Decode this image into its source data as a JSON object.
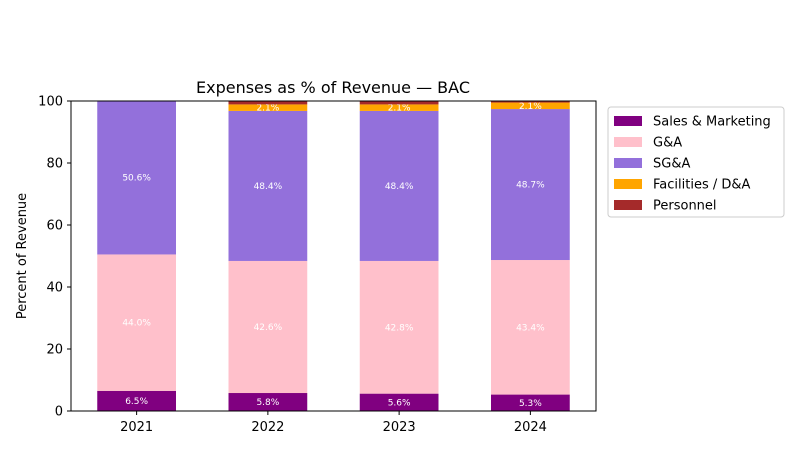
{
  "chart_data": {
    "type": "bar",
    "stacked": true,
    "title": "Expenses as % of Revenue — BAC",
    "xlabel": "",
    "ylabel": "Percent of Revenue",
    "ylim": [
      0,
      100
    ],
    "yticks": [
      "0",
      "20",
      "40",
      "60",
      "80",
      "100"
    ],
    "categories": [
      "2021",
      "2022",
      "2023",
      "2024"
    ],
    "grid": false,
    "legend_position": "outside right",
    "series": [
      {
        "name": "Sales & Marketing",
        "color": "#800080",
        "values": [
          6.5,
          5.8,
          5.6,
          5.3
        ],
        "labels": [
          "6.5%",
          "5.8%",
          "5.6%",
          "5.3%"
        ]
      },
      {
        "name": "G&A",
        "color": "#ffc0cb",
        "values": [
          44.0,
          42.6,
          42.8,
          43.4
        ],
        "labels": [
          "44.0%",
          "42.6%",
          "42.8%",
          "43.4%"
        ]
      },
      {
        "name": "SG&A",
        "color": "#9370db",
        "values": [
          50.6,
          48.4,
          48.4,
          48.7
        ],
        "labels": [
          "50.6%",
          "48.4%",
          "48.4%",
          "48.7%"
        ]
      },
      {
        "name": "Facilities / D&A",
        "color": "#ffa500",
        "values": [
          0,
          2.1,
          2.1,
          2.1
        ],
        "labels": [
          "",
          "2.1%",
          "2.1%",
          "2.1%"
        ]
      },
      {
        "name": "Personnel",
        "color": "#a52a2a",
        "values": [
          0,
          1.1,
          1.1,
          0.5
        ],
        "labels": [
          "",
          "",
          "",
          ""
        ]
      }
    ]
  }
}
